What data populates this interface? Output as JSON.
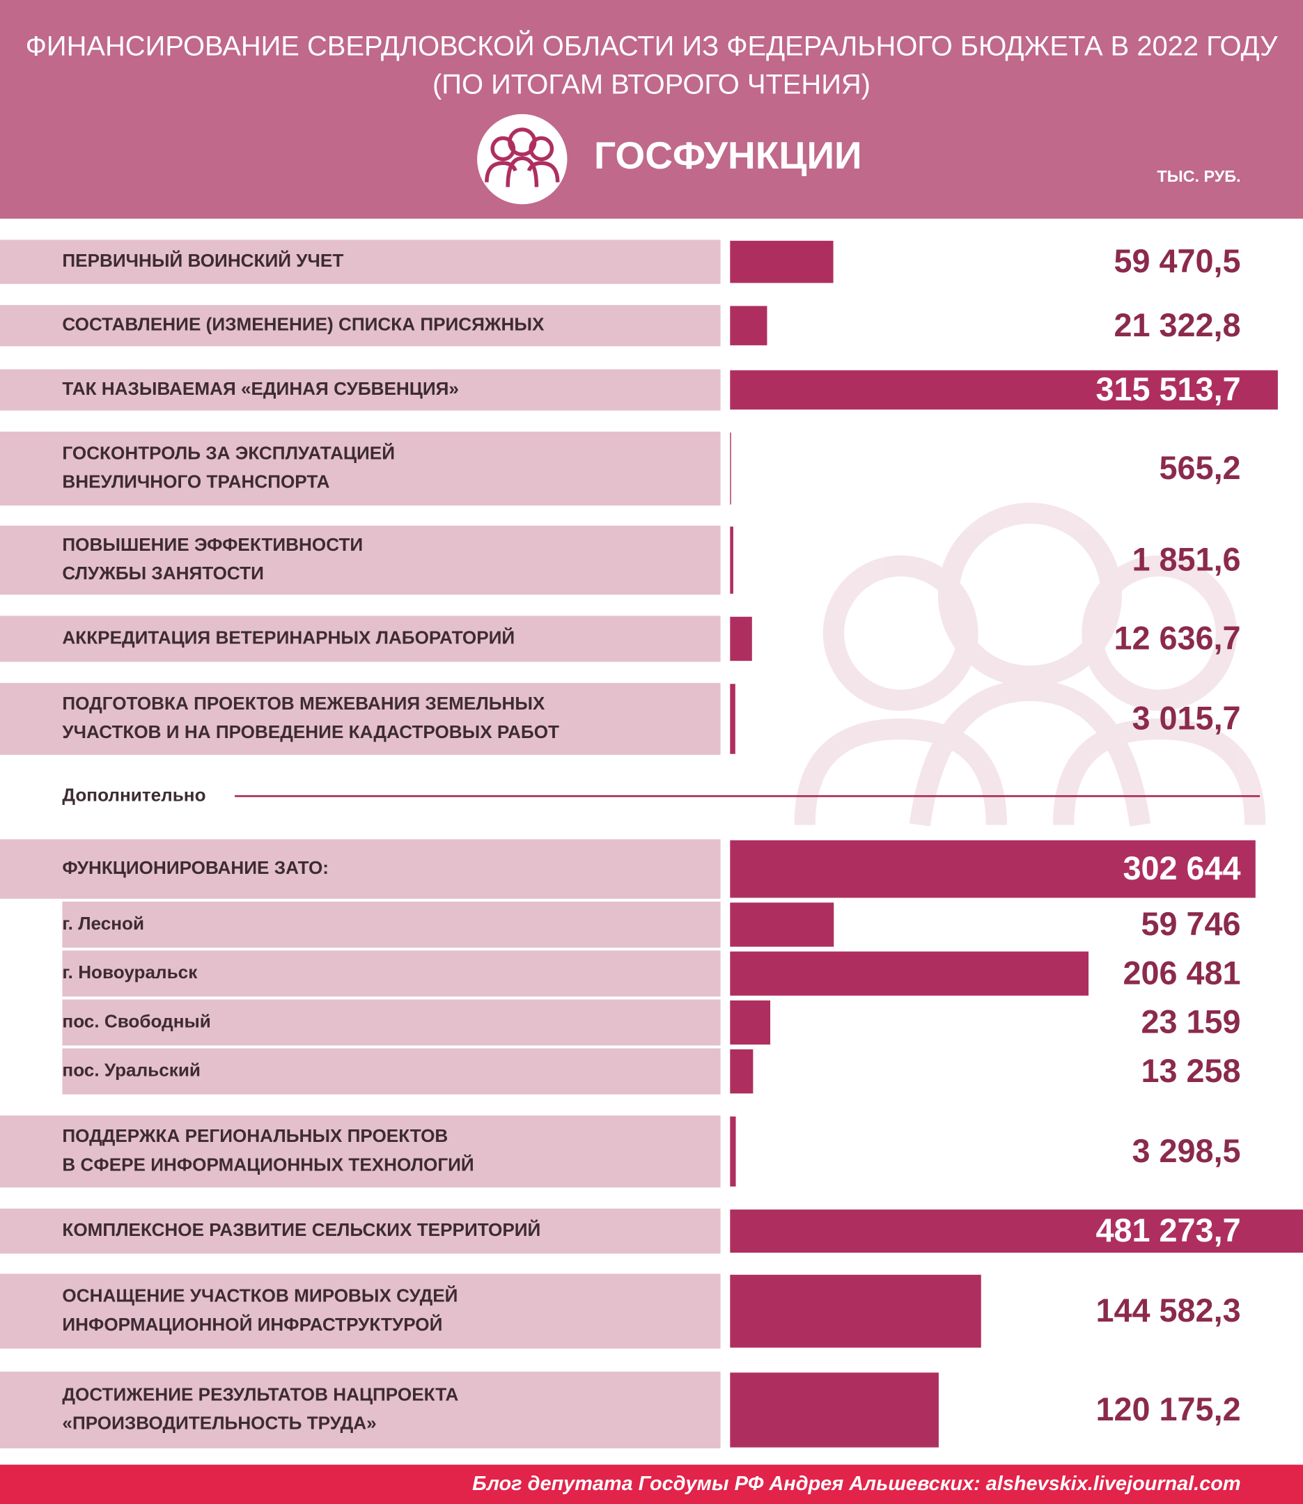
{
  "chart_data": {
    "type": "bar",
    "title": "ФИНАНСИРОВАНИЕ СВЕРДЛОВСКОЙ ОБЛАСТИ ИЗ ФЕДЕРАЛЬНОГО БЮДЖЕТА В 2022 ГОДУ",
    "subtitle": "(ПО ИТОГАМ ВТОРОГО ЧТЕНИЯ)",
    "heading": "ГОСФУНКЦИИ",
    "unit": "ТЫС. РУБ.",
    "section_label": "Дополнительно",
    "footer": "Блог депутата Госдумы РФ Андрея Альшевских: alshevskix.livejournal.com",
    "color": "#ae2f5f",
    "xlim": [
      0,
      330000
    ],
    "categories": [
      "ПЕРВИЧНЫЙ ВОИНСКИЙ УЧЕТ",
      "СОСТАВЛЕНИЕ (ИЗМЕНЕНИЕ) СПИСКА ПРИСЯЖНЫХ",
      "ТАК НАЗЫВАЕМАЯ «ЕДИНАЯ СУБВЕНЦИЯ»",
      "ГОСКОНТРОЛЬ ЗА ЭКСПЛУАТАЦИЕЙ\nВНЕУЛИЧНОГО ТРАНСПОРТА",
      "ПОВЫШЕНИЕ ЭФФЕКТИВНОСТИ\nСЛУЖБЫ ЗАНЯТОСТИ",
      "АККРЕДИТАЦИЯ ВЕТЕРИНАРНЫХ ЛАБОРАТОРИЙ",
      "ПОДГОТОВКА ПРОЕКТОВ МЕЖЕВАНИЯ ЗЕМЕЛЬНЫХ\nУЧАСТКОВ И НА ПРОВЕДЕНИЕ КАДАСТРОВЫХ РАБОТ",
      "ФУНКЦИОНИРОВАНИЕ ЗАТО:",
      "г. Лесной",
      "г. Новоуральск",
      "пос. Свободный",
      "пос. Уральский",
      "ПОДДЕРЖКА РЕГИОНАЛЬНЫХ ПРОЕКТОВ\nВ СФЕРЕ ИНФОРМАЦИОННЫХ ТЕХНОЛОГИЙ",
      "КОМПЛЕКСНОЕ РАЗВИТИЕ СЕЛЬСКИХ ТЕРРИТОРИЙ",
      "ОСНАЩЕНИЕ УЧАСТКОВ МИРОВЫХ СУДЕЙ\nИНФОРМАЦИОННОЙ ИНФРАСТРУКТУРОЙ",
      "ДОСТИЖЕНИЕ РЕЗУЛЬТАТОВ НАЦПРОЕКТА\n«ПРОИЗВОДИТЕЛЬНОСТЬ ТРУДА»"
    ],
    "values": [
      59470.5,
      21322.8,
      315513.7,
      565.2,
      1851.6,
      12636.7,
      3015.7,
      302644,
      59746,
      206481,
      23159,
      13258,
      3298.5,
      481273.7,
      144582.3,
      120175.2
    ],
    "value_labels": [
      "59 470,5",
      "21 322,8",
      "315 513,7",
      "565,2",
      "1 851,6",
      "12 636,7",
      "3 015,7",
      "302 644",
      "59 746",
      "206 481",
      "23 159",
      "13 258",
      "3 298,5",
      "481 273,7",
      "144 582,3",
      "120 175,2"
    ]
  }
}
